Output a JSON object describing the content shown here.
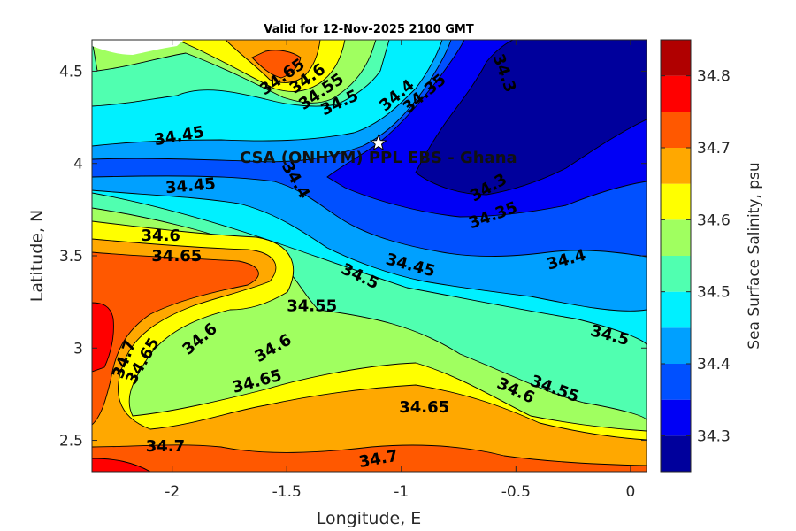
{
  "chart_data": {
    "type": "heatmap",
    "title": "Valid for 12-Nov-2025 2100 GMT",
    "xlabel": "Longitude, E",
    "ylabel": "Latitude, N",
    "xlim": [
      -2.35,
      0.07
    ],
    "ylim": [
      2.33,
      4.67
    ],
    "x_ticks": [
      -2,
      -1.5,
      -1,
      -0.5,
      0
    ],
    "y_ticks": [
      2.5,
      3,
      3.5,
      4,
      4.5
    ],
    "x_tick_labels": [
      "-2",
      "-1.5",
      "-1",
      "-0.5",
      "0"
    ],
    "y_tick_labels": [
      "2.5",
      "3",
      "3.5",
      "4",
      "4.5"
    ],
    "colorbar": {
      "label": "Sea Surface Salinity, psu",
      "levels": [
        34.25,
        34.3,
        34.35,
        34.4,
        34.45,
        34.5,
        34.55,
        34.6,
        34.65,
        34.7,
        34.75,
        34.8,
        34.85
      ],
      "colors": [
        "#00009c",
        "#0000f5",
        "#0050ff",
        "#00a0ff",
        "#00f0ff",
        "#50ffb0",
        "#a0ff60",
        "#ffff00",
        "#ffa800",
        "#ff5800",
        "#ff0000",
        "#b00000"
      ],
      "tick_values": [
        34.3,
        34.4,
        34.5,
        34.6,
        34.7,
        34.8
      ],
      "tick_labels": [
        "34.3",
        "34.4",
        "34.5",
        "34.6",
        "34.7",
        "34.8"
      ]
    },
    "grid": false,
    "site": {
      "name": "CSA (ONHYM) PPL EBS - Ghana",
      "lon": -1.1,
      "lat": 4.11
    },
    "contour_labels": [
      {
        "text": "34.65",
        "lon": -1.52,
        "lat": 4.47,
        "rot": -35
      },
      {
        "text": "34.6",
        "lon": -1.41,
        "lat": 4.46,
        "rot": -35
      },
      {
        "text": "34.55",
        "lon": -1.35,
        "lat": 4.39,
        "rot": -35
      },
      {
        "text": "34.5",
        "lon": -1.27,
        "lat": 4.33,
        "rot": -25
      },
      {
        "text": "34.4",
        "lon": -1.02,
        "lat": 4.37,
        "rot": -40
      },
      {
        "text": "34.35",
        "lon": -0.9,
        "lat": 4.38,
        "rot": -40
      },
      {
        "text": "34.3",
        "lon": -0.55,
        "lat": 4.49,
        "rot": 70
      },
      {
        "text": "34.45",
        "lon": -1.97,
        "lat": 4.15,
        "rot": -10
      },
      {
        "text": "34.45",
        "lon": -1.92,
        "lat": 3.88,
        "rot": -5
      },
      {
        "text": "34.4",
        "lon": -1.46,
        "lat": 3.91,
        "rot": 60
      },
      {
        "text": "34.3",
        "lon": -0.62,
        "lat": 3.87,
        "rot": -30
      },
      {
        "text": "34.35",
        "lon": -0.6,
        "lat": 3.72,
        "rot": -20
      },
      {
        "text": "34.6",
        "lon": -2.05,
        "lat": 3.61,
        "rot": 0
      },
      {
        "text": "34.65",
        "lon": -1.98,
        "lat": 3.5,
        "rot": 0
      },
      {
        "text": "34.45",
        "lon": -0.96,
        "lat": 3.45,
        "rot": 15
      },
      {
        "text": "34.5",
        "lon": -1.18,
        "lat": 3.39,
        "rot": 25
      },
      {
        "text": "34.4",
        "lon": -0.28,
        "lat": 3.48,
        "rot": -15
      },
      {
        "text": "34.55",
        "lon": -1.39,
        "lat": 3.23,
        "rot": 0
      },
      {
        "text": "34.5",
        "lon": -0.09,
        "lat": 3.07,
        "rot": 15
      },
      {
        "text": "34.7",
        "lon": -2.21,
        "lat": 2.94,
        "rot": -70
      },
      {
        "text": "34.65",
        "lon": -2.13,
        "lat": 2.93,
        "rot": -60
      },
      {
        "text": "34.6",
        "lon": -1.88,
        "lat": 3.05,
        "rot": -40
      },
      {
        "text": "34.6",
        "lon": -1.56,
        "lat": 3.0,
        "rot": -30
      },
      {
        "text": "34.65",
        "lon": -1.63,
        "lat": 2.82,
        "rot": -15
      },
      {
        "text": "34.6",
        "lon": -0.5,
        "lat": 2.77,
        "rot": 25
      },
      {
        "text": "34.55",
        "lon": -0.33,
        "lat": 2.78,
        "rot": 20
      },
      {
        "text": "34.65",
        "lon": -0.9,
        "lat": 2.68,
        "rot": 0
      },
      {
        "text": "34.7",
        "lon": -2.03,
        "lat": 2.47,
        "rot": 0
      },
      {
        "text": "34.7",
        "lon": -1.1,
        "lat": 2.4,
        "rot": -10
      }
    ]
  }
}
